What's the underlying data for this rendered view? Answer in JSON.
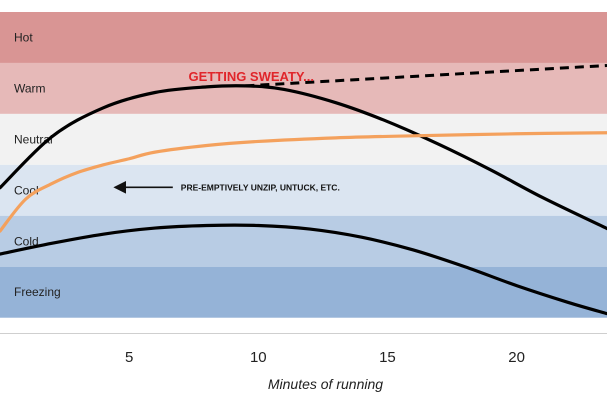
{
  "chart_data": {
    "type": "line",
    "title": "",
    "xlabel": "Minutes of running",
    "ylabel": "",
    "xlim": [
      0,
      23.5
    ],
    "ylim": [
      0,
      6.3
    ],
    "x_ticks": [
      5,
      10,
      15,
      20
    ],
    "grid": false,
    "bands": [
      {
        "label": "Hot",
        "from": 5.3,
        "to": 6.3,
        "color": "#d99594"
      },
      {
        "label": "Warm",
        "from": 4.3,
        "to": 5.3,
        "color": "#e6b9b8"
      },
      {
        "label": "Neutral",
        "from": 3.3,
        "to": 4.3,
        "color": "#f2f2f2"
      },
      {
        "label": "Cool",
        "from": 2.3,
        "to": 3.3,
        "color": "#dbe5f1"
      },
      {
        "label": "Cold",
        "from": 1.3,
        "to": 2.3,
        "color": "#b8cce4"
      },
      {
        "label": "Freezing",
        "from": 0.3,
        "to": 1.3,
        "color": "#95b3d7"
      }
    ],
    "series": [
      {
        "color": "#000000",
        "dashed": false,
        "x": [
          0,
          2,
          4,
          6,
          8,
          9.5,
          11,
          13,
          15,
          17,
          19,
          21,
          23.5
        ],
        "y": [
          2.85,
          3.85,
          4.42,
          4.72,
          4.83,
          4.85,
          4.78,
          4.52,
          4.15,
          3.7,
          3.2,
          2.66,
          2.05
        ]
      },
      {
        "color": "#000000",
        "dashed": true,
        "x": [
          9.5,
          23.5
        ],
        "y": [
          4.85,
          5.25
        ]
      },
      {
        "color": "#f4a15d",
        "dashed": false,
        "x": [
          0,
          1,
          2,
          3,
          4,
          5,
          6,
          8,
          10,
          13,
          16,
          20,
          23.5
        ],
        "y": [
          2.0,
          2.63,
          2.93,
          3.15,
          3.3,
          3.42,
          3.55,
          3.68,
          3.76,
          3.83,
          3.87,
          3.91,
          3.93
        ]
      },
      {
        "color": "#000000",
        "dashed": false,
        "x": [
          0,
          2,
          4,
          6,
          8,
          10,
          12,
          14,
          16,
          18,
          20,
          22,
          23.5
        ],
        "y": [
          1.55,
          1.76,
          1.94,
          2.06,
          2.11,
          2.11,
          2.04,
          1.88,
          1.63,
          1.3,
          0.93,
          0.6,
          0.38
        ]
      }
    ],
    "annotations": [
      {
        "text": "GETTING SWEATY...",
        "style": "red",
        "x": 7.3,
        "y": 4.95
      },
      {
        "text": "PRE-EMPTIVELY UNZIP, UNTUCK, ETC.",
        "style": "black",
        "x": 7.0,
        "y": 2.8,
        "arrow_to_x": 4.45,
        "arrow_to_y": 2.8
      }
    ]
  }
}
